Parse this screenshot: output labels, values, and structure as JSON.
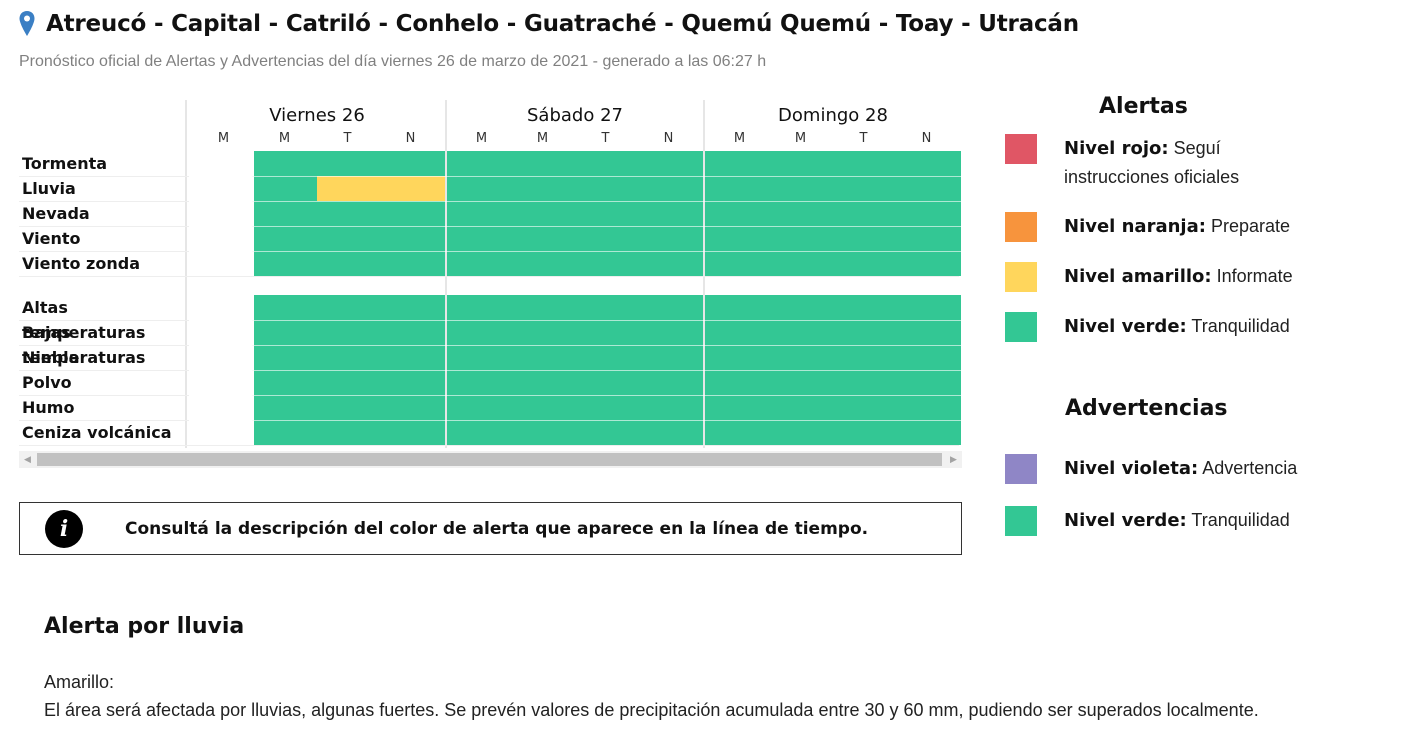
{
  "header": {
    "title": "Atreucó - Capital - Catriló - Conhelo - Guatraché - Quemú Quemú - Toay - Utracán",
    "subtitle": "Pronóstico oficial de Alertas y Advertencias del día viernes 26 de marzo de 2021 - generado a las 06:27 h",
    "icon": "location-pin-icon"
  },
  "timeline": {
    "days": [
      {
        "label": "Viernes 26",
        "slots": [
          "M",
          "M",
          "T",
          "N"
        ]
      },
      {
        "label": "Sábado 27",
        "slots": [
          "M",
          "M",
          "T",
          "N"
        ]
      },
      {
        "label": "Domingo 28",
        "slots": [
          "M",
          "M",
          "T",
          "N"
        ]
      }
    ],
    "alert_rows": [
      "Tormenta",
      "Lluvia",
      "Nevada",
      "Viento",
      "Viento zonda"
    ],
    "warning_rows": [
      "Altas temperaturas",
      "Bajas temperaturas",
      "Niebla",
      "Polvo",
      "Humo",
      "Ceniza volcánica"
    ],
    "colors": {
      "green": "#33c794",
      "yellow": "#ffd65c",
      "none": "#ffffff"
    },
    "grid": {
      "Tormenta": [
        "none",
        "green",
        "green",
        "green",
        "green",
        "green",
        "green",
        "green",
        "green",
        "green",
        "green",
        "green"
      ],
      "Lluvia": [
        "none",
        "green",
        "yellow",
        "yellow",
        "green",
        "green",
        "green",
        "green",
        "green",
        "green",
        "green",
        "green"
      ],
      "Nevada": [
        "none",
        "green",
        "green",
        "green",
        "green",
        "green",
        "green",
        "green",
        "green",
        "green",
        "green",
        "green"
      ],
      "Viento": [
        "none",
        "green",
        "green",
        "green",
        "green",
        "green",
        "green",
        "green",
        "green",
        "green",
        "green",
        "green"
      ],
      "Viento zonda": [
        "none",
        "green",
        "green",
        "green",
        "green",
        "green",
        "green",
        "green",
        "green",
        "green",
        "green",
        "green"
      ],
      "Altas temperaturas": [
        "none",
        "green",
        "green",
        "green",
        "green",
        "green",
        "green",
        "green",
        "green",
        "green",
        "green",
        "green"
      ],
      "Bajas temperaturas": [
        "none",
        "green",
        "green",
        "green",
        "green",
        "green",
        "green",
        "green",
        "green",
        "green",
        "green",
        "green"
      ],
      "Niebla": [
        "none",
        "green",
        "green",
        "green",
        "green",
        "green",
        "green",
        "green",
        "green",
        "green",
        "green",
        "green"
      ],
      "Polvo": [
        "none",
        "green",
        "green",
        "green",
        "green",
        "green",
        "green",
        "green",
        "green",
        "green",
        "green",
        "green"
      ],
      "Humo": [
        "none",
        "green",
        "green",
        "green",
        "green",
        "green",
        "green",
        "green",
        "green",
        "green",
        "green",
        "green"
      ],
      "Ceniza volcánica": [
        "none",
        "green",
        "green",
        "green",
        "green",
        "green",
        "green",
        "green",
        "green",
        "green",
        "green",
        "green"
      ]
    }
  },
  "info": {
    "text": "Consultá la descripción del color de alerta que aparece en la línea de tiempo.",
    "icon": "info-icon",
    "icon_glyph": "i"
  },
  "legend": {
    "alerts_title": "Alertas",
    "alerts": [
      {
        "level": "Nivel rojo:",
        "desc": "Seguí instrucciones oficiales",
        "color": "#e05665"
      },
      {
        "level": "Nivel naranja:",
        "desc": "Preparate",
        "color": "#f7943d"
      },
      {
        "level": "Nivel amarillo:",
        "desc": "Informate",
        "color": "#ffd65c"
      },
      {
        "level": "Nivel verde:",
        "desc": "Tranquilidad",
        "color": "#33c794"
      }
    ],
    "warnings_title": "Advertencias",
    "warnings": [
      {
        "level": "Nivel violeta:",
        "desc": "Advertencia",
        "color": "#8f86c6"
      },
      {
        "level": "Nivel verde:",
        "desc": "Tranquilidad",
        "color": "#33c794"
      }
    ]
  },
  "alert_detail": {
    "title": "Alerta por lluvia",
    "level": "Amarillo:",
    "description": "El área será afectada por lluvias, algunas fuertes. Se prevén valores de precipitación acumulada entre 30 y 60 mm, pudiendo ser superados localmente."
  },
  "scrollbar": {
    "left_arrow": "◀",
    "right_arrow": "▶"
  }
}
